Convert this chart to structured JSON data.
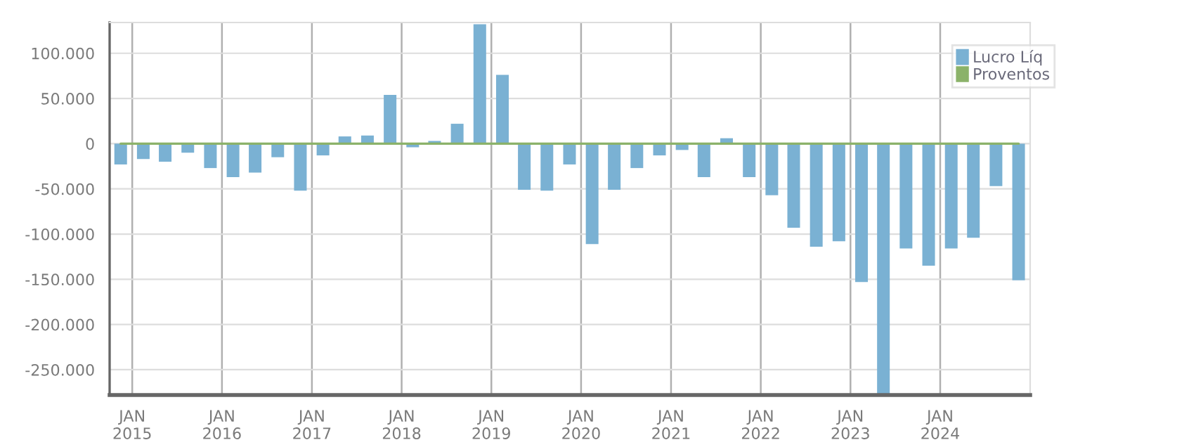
{
  "chart_data": {
    "type": "bar",
    "x": [
      "2014-11",
      "2015-02",
      "2015-05",
      "2015-08",
      "2015-11",
      "2016-02",
      "2016-05",
      "2016-08",
      "2016-11",
      "2017-02",
      "2017-05",
      "2017-08",
      "2017-11",
      "2018-02",
      "2018-05",
      "2018-08",
      "2018-11",
      "2019-02",
      "2019-05",
      "2019-08",
      "2019-11",
      "2020-02",
      "2020-05",
      "2020-08",
      "2020-11",
      "2021-02",
      "2021-05",
      "2021-08",
      "2021-11",
      "2022-02",
      "2022-05",
      "2022-08",
      "2022-11",
      "2023-02",
      "2023-05",
      "2023-08",
      "2023-11",
      "2024-02",
      "2024-05",
      "2024-08",
      "2024-11"
    ],
    "series": [
      {
        "name": "Lucro Líq",
        "color": "#7ab1d3",
        "values": [
          -23000,
          -17000,
          -20000,
          -10000,
          -27000,
          -37000,
          -32000,
          -15000,
          -52000,
          -13000,
          8000,
          9000,
          54000,
          -4000,
          3000,
          22000,
          132000,
          76000,
          -51000,
          -52000,
          -23000,
          -111000,
          -51000,
          -27000,
          -13000,
          -7000,
          -37000,
          6000,
          -37000,
          -57000,
          -93000,
          -114000,
          -108000,
          -153000,
          -278000,
          -116000,
          -135000,
          -116000,
          -104000,
          -47000,
          -151000
        ]
      },
      {
        "name": "Proventos",
        "color": "#8bb26a",
        "type": "line",
        "values": [
          0,
          0,
          0,
          0,
          0,
          0,
          0,
          0,
          0,
          0,
          0,
          0,
          0,
          0,
          0,
          0,
          0,
          0,
          0,
          0,
          0,
          0,
          0,
          0,
          0,
          0,
          0,
          0,
          0,
          0,
          0,
          0,
          0,
          0,
          0,
          0,
          0,
          0,
          0,
          0,
          0
        ]
      }
    ],
    "xlim": [
      "2014-10-01",
      "2025-01-01"
    ],
    "xticks": [
      {
        "value": "2015-01-01",
        "label": "JAN\n2015"
      },
      {
        "value": "2016-01-01",
        "label": "JAN\n2016"
      },
      {
        "value": "2017-01-01",
        "label": "JAN\n2017"
      },
      {
        "value": "2018-01-01",
        "label": "JAN\n2018"
      },
      {
        "value": "2019-01-01",
        "label": "JAN\n2019"
      },
      {
        "value": "2020-01-01",
        "label": "JAN\n2020"
      },
      {
        "value": "2021-01-01",
        "label": "JAN\n2021"
      },
      {
        "value": "2022-01-01",
        "label": "JAN\n2022"
      },
      {
        "value": "2023-01-01",
        "label": "JAN\n2023"
      },
      {
        "value": "2024-01-01",
        "label": "JAN\n2024"
      }
    ],
    "ylim": [
      -278000,
      134000
    ],
    "yticks": [
      {
        "value": -250000,
        "label": "-250.000"
      },
      {
        "value": -200000,
        "label": "-200.000"
      },
      {
        "value": -150000,
        "label": "-150.000"
      },
      {
        "value": -100000,
        "label": "-100.000"
      },
      {
        "value": -50000,
        "label": "-50.000"
      },
      {
        "value": 0,
        "label": "0"
      },
      {
        "value": 50000,
        "label": "50.000"
      },
      {
        "value": 100000,
        "label": "100.000"
      }
    ],
    "grid": true,
    "legend": "top right"
  }
}
